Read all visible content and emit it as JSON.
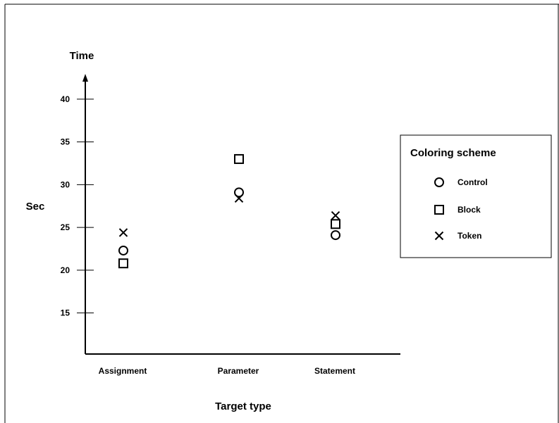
{
  "chart_data": {
    "type": "scatter",
    "title": "Time",
    "ylabel": "Sec",
    "xlabel": "Target type",
    "categories": [
      "Assignment",
      "Parameter",
      "Statement"
    ],
    "yticks": [
      15,
      20,
      25,
      30,
      35,
      40
    ],
    "ylim": [
      10.2,
      43.2
    ],
    "grid": false,
    "legend": {
      "title": "Coloring scheme",
      "placement": "right",
      "entries": [
        {
          "label": "Control",
          "marker": "circle"
        },
        {
          "label": "Block",
          "marker": "square"
        },
        {
          "label": "Token",
          "marker": "cross"
        }
      ]
    },
    "series": [
      {
        "name": "Control",
        "marker": "circle",
        "values": [
          22.3,
          29.1,
          24.1
        ]
      },
      {
        "name": "Block",
        "marker": "square",
        "values": [
          20.8,
          33.0,
          25.4
        ]
      },
      {
        "name": "Token",
        "marker": "cross",
        "values": [
          24.4,
          28.4,
          26.4
        ]
      }
    ]
  }
}
